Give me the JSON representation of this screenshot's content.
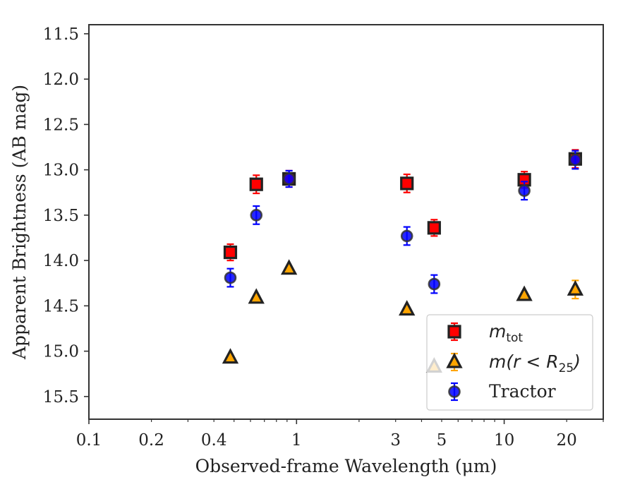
{
  "chart_data": {
    "type": "scatter",
    "title": "",
    "xlabel": "Observed-frame Wavelength (μm)",
    "ylabel": "Apparent Brightness (AB mag)",
    "xscale": "log",
    "xlim": [
      0.1,
      30
    ],
    "ylim": [
      15.75,
      11.4
    ],
    "y_inverted": true,
    "xticks": [
      0.1,
      0.2,
      0.4,
      1,
      3,
      5,
      10,
      20
    ],
    "xtick_labels": [
      "0.1",
      "0.2",
      "0.4",
      "1",
      "3",
      "5",
      "10",
      "20"
    ],
    "yticks": [
      11.5,
      12.0,
      12.5,
      13.0,
      13.5,
      14.0,
      14.5,
      15.0,
      15.5
    ],
    "ytick_labels": [
      "11.5",
      "12.0",
      "12.5",
      "13.0",
      "13.5",
      "14.0",
      "14.5",
      "15.0",
      "15.5"
    ],
    "grid": false,
    "legend_position": "bottom-right",
    "series": [
      {
        "key": "mtot",
        "marker": "square",
        "color": "#ff0000",
        "edge_color": "#222222",
        "legend_main": "m",
        "legend_sub": "tot",
        "x": [
          0.48,
          0.64,
          0.92,
          3.4,
          4.6,
          12.5,
          22
        ],
        "y": [
          13.91,
          13.16,
          13.1,
          13.15,
          13.64,
          13.11,
          12.88
        ],
        "err": [
          0.09,
          0.1,
          0.09,
          0.1,
          0.09,
          0.09,
          0.1
        ]
      },
      {
        "key": "mr25",
        "marker": "triangle",
        "color": "#ffa500",
        "edge_color": "#222222",
        "legend_main": "m(r < R",
        "legend_sub": "25",
        "legend_tail": ")",
        "x": [
          0.48,
          0.64,
          0.92,
          3.4,
          4.6,
          12.5,
          22
        ],
        "y": [
          15.07,
          14.41,
          14.09,
          14.54,
          15.17,
          14.38,
          14.32
        ],
        "err": [
          0.0,
          0.0,
          0.0,
          0.0,
          0.0,
          0.0,
          0.1
        ]
      },
      {
        "key": "tractor",
        "marker": "circle",
        "color": "#0000ff",
        "edge_color": "#333333",
        "legend_main": "Tractor",
        "x": [
          0.48,
          0.64,
          0.92,
          3.4,
          4.6,
          12.5,
          22
        ],
        "y": [
          14.19,
          13.5,
          13.1,
          13.73,
          14.26,
          13.23,
          12.89
        ],
        "err": [
          0.1,
          0.1,
          0.09,
          0.1,
          0.1,
          0.1,
          0.1
        ]
      }
    ]
  }
}
